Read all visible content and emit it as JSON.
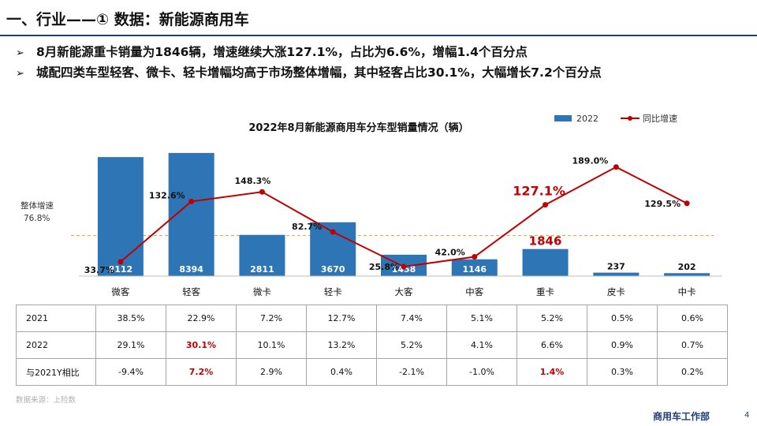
{
  "header": {
    "title": "一、行业——① 数据：新能源商用车",
    "bullet_glyph": "➢",
    "bullets": [
      "8月新能源重卡销量为1846辆，增速继续大涨127.1%，占比为6.6%，增幅1.4个百分点",
      "城配四类车型轻客、微卡、轻卡增幅均高于市场整体增幅，其中轻客占比30.1%，大幅增长7.2个百分点"
    ]
  },
  "chart_data": {
    "type": "bar",
    "title": "2022年8月新能源商用车分车型销量情况（辆）",
    "categories": [
      "微客",
      "轻客",
      "微卡",
      "轻卡",
      "大客",
      "中客",
      "重卡",
      "皮卡",
      "中卡"
    ],
    "series": [
      {
        "name": "2022",
        "type": "bar",
        "values": [
          8112,
          8394,
          2811,
          3670,
          1458,
          1146,
          1846,
          237,
          202
        ],
        "labels": [
          "8112",
          "8394",
          "2811",
          "3670",
          "1458",
          "1146",
          "1846",
          "237",
          "202"
        ],
        "color": "#2e75b6"
      },
      {
        "name": "同比增速",
        "type": "line",
        "values": [
          33.7,
          132.6,
          148.3,
          82.7,
          25.8,
          42.0,
          127.1,
          189.0,
          129.5
        ],
        "labels": [
          "33.7%",
          "132.6%",
          "148.3%",
          "82.7%",
          "25.8%",
          "42.0%",
          "127.1%",
          "189.0%",
          "129.5%"
        ],
        "color": "#c00000"
      }
    ],
    "bar_ylim": [
      0,
      10000
    ],
    "line_ylim": [
      0,
      230
    ],
    "reference_line": {
      "label": "整体增速",
      "value_label": "76.8%",
      "value": 76.8,
      "color": "#e0a030"
    },
    "highlight_category": "重卡",
    "highlight_color": "#c00000",
    "legend_position": "top-right",
    "grid": false
  },
  "table": {
    "rows": [
      {
        "label": "2021",
        "cells": [
          "38.5%",
          "22.9%",
          "7.2%",
          "12.7%",
          "7.4%",
          "5.1%",
          "5.2%",
          "0.5%",
          "0.6%"
        ]
      },
      {
        "label": "2022",
        "cells": [
          "29.1%",
          "30.1%",
          "10.1%",
          "13.2%",
          "5.2%",
          "4.1%",
          "6.6%",
          "0.9%",
          "0.7%"
        ]
      },
      {
        "label": "与2021Y相比",
        "cells": [
          "-9.4%",
          "7.2%",
          "2.9%",
          "0.4%",
          "-2.1%",
          "-1.0%",
          "1.4%",
          "0.3%",
          "0.2%"
        ]
      }
    ],
    "highlighted_cells": [
      [
        1,
        1
      ],
      [
        2,
        1
      ],
      [
        2,
        6
      ]
    ],
    "highlight_color": "#c00000"
  },
  "footer": {
    "source": "数据来源：上险数",
    "brand": "商用车工作部",
    "page_number": "4"
  }
}
